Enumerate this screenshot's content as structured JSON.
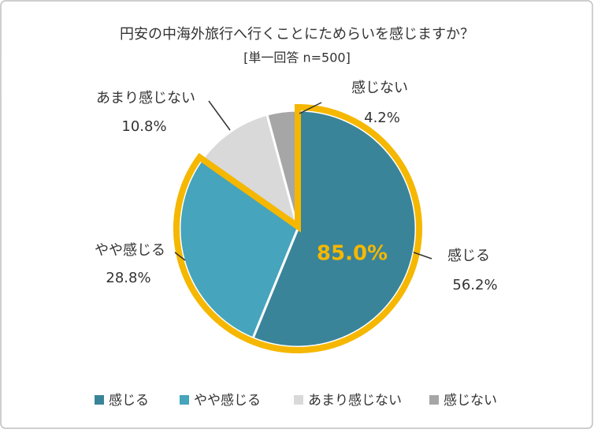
{
  "chart_data": {
    "type": "pie",
    "title": "円安の中海外旅行へ行くことにためらいを感じますか？",
    "subtitle": "[単一回答 n=500]",
    "categories": [
      "感じる",
      "やや感じる",
      "あまり感じない",
      "感じない"
    ],
    "values": [
      56.2,
      28.8,
      10.8,
      4.2
    ],
    "value_labels": [
      "56.2%",
      "28.8%",
      "10.8%",
      "4.2%"
    ],
    "colors": [
      "#3a8499",
      "#46a4bc",
      "#d9d9d9",
      "#a6a6a6"
    ],
    "annotation": "85.0%",
    "legend": "bottom"
  }
}
